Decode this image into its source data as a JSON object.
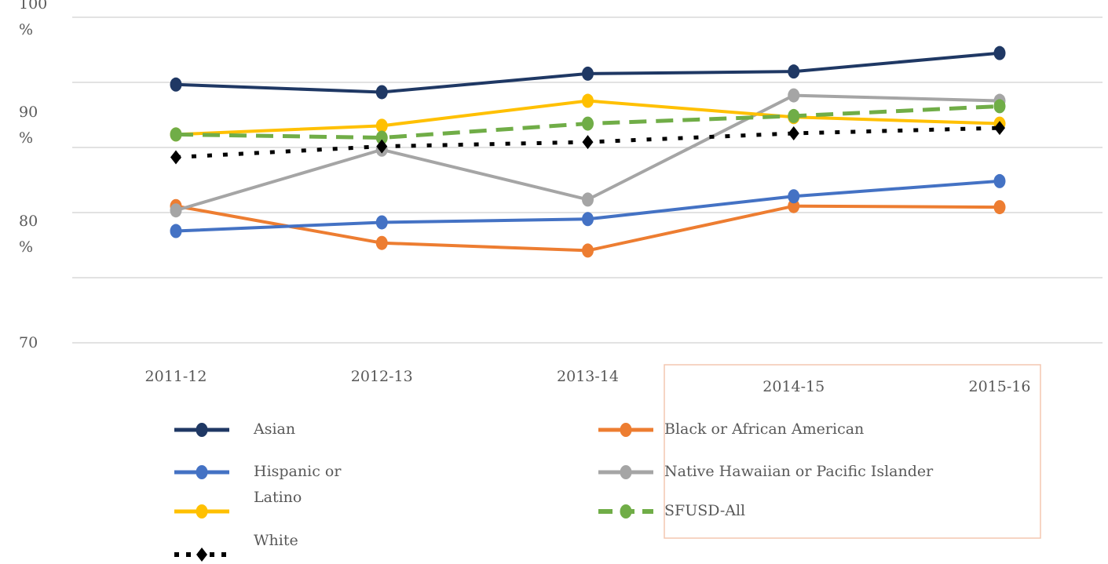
{
  "chart_data": {
    "type": "line",
    "categories": [
      "2011-12",
      "2012-13",
      "2013-14",
      "2014-15",
      "2015-16"
    ],
    "series": [
      {
        "name": "Asian",
        "color": "#1f3864",
        "style": "solid",
        "marker": "circle",
        "values": [
          93.8,
          93.1,
          94.8,
          95.0,
          96.7
        ]
      },
      {
        "name": "Black or African American",
        "color": "#ed7d31",
        "style": "solid",
        "marker": "circle",
        "values": [
          82.6,
          79.2,
          78.5,
          82.6,
          82.5
        ]
      },
      {
        "name": "Hispanic or Latino",
        "color": "#4472c4",
        "style": "solid",
        "marker": "circle",
        "values": [
          80.3,
          81.1,
          81.4,
          83.5,
          84.9
        ]
      },
      {
        "name": "Native Hawaiian or Pacific Islander",
        "color": "#a5a5a5",
        "style": "solid",
        "marker": "circle",
        "values": [
          82.2,
          87.8,
          83.2,
          92.8,
          92.3
        ]
      },
      {
        "name": null,
        "color": "#ffc000",
        "style": "solid",
        "marker": "circle",
        "values": [
          89.2,
          90.0,
          92.3,
          90.8,
          90.2
        ]
      },
      {
        "name": "SFUSD-All",
        "color": "#70ad47",
        "style": "dashed",
        "marker": "circle",
        "values": [
          89.2,
          88.9,
          90.2,
          90.9,
          91.8
        ]
      },
      {
        "name": "White",
        "color": "#000000",
        "style": "dotted",
        "marker": "diamond",
        "values": [
          87.1,
          88.1,
          88.5,
          89.3,
          89.8
        ]
      }
    ],
    "ylim": [
      70,
      100
    ],
    "yticks": [
      {
        "value": 100,
        "label": "100 %"
      },
      {
        "value": 90,
        "label": "90 %"
      },
      {
        "value": 80,
        "label": "80 %"
      },
      70
    ],
    "gridlines": [
      100,
      94,
      88,
      82,
      76,
      70
    ],
    "grid": true
  }
}
